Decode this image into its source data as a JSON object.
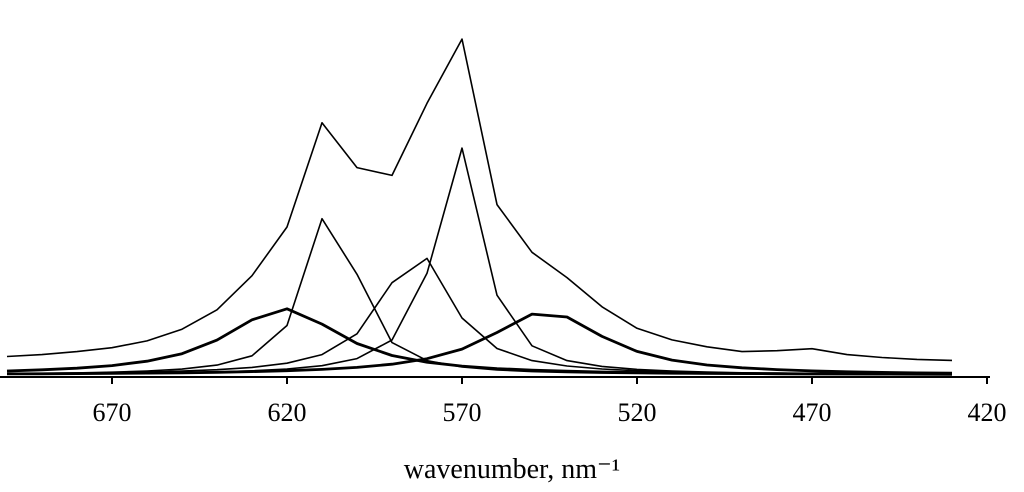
{
  "chart_data": {
    "type": "line",
    "x_label": "wavenumber, nm⁻¹",
    "x": [
      700,
      690,
      680,
      670,
      660,
      650,
      640,
      630,
      620,
      610,
      600,
      590,
      580,
      570,
      560,
      550,
      540,
      530,
      520,
      510,
      500,
      490,
      480,
      470,
      460,
      450,
      440,
      430
    ],
    "xlim": [
      702,
      420
    ],
    "xticks": [
      670,
      620,
      570,
      520,
      470,
      420
    ],
    "ylim": [
      0,
      380
    ],
    "series": [
      {
        "color": "#000000",
        "width": 1.6,
        "values": [
          19,
          21,
          24,
          28,
          35,
          47,
          67,
          102,
          152,
          259,
          213,
          205,
          279,
          345,
          175,
          126,
          100,
          70,
          48,
          36,
          29,
          24,
          25,
          27,
          21,
          18,
          16,
          15
        ]
      },
      {
        "color": "#000000",
        "width": 2.8,
        "values": [
          4.1,
          5.3,
          7.0,
          9.7,
          14.2,
          21.9,
          35.8,
          56.7,
          68,
          52.3,
          32.4,
          20,
          13.1,
          9.1,
          6.6,
          5.0,
          3.9,
          3.1,
          2.6,
          2.1,
          1.8,
          1.5,
          1.3,
          1.1,
          1.0,
          0.9,
          0.8,
          0.7
        ]
      },
      {
        "color": "#000000",
        "width": 1.6,
        "values": [
          1.3,
          1.7,
          2.2,
          2.9,
          4.1,
          6.1,
          10.2,
          19.7,
          50.8,
          160.5,
          103.4,
          33.3,
          14.8,
          8.2,
          5.2,
          3.5,
          2.6,
          1.9,
          1.5,
          1.2,
          1.0,
          0.9,
          0.7,
          0.6,
          0.5,
          0.4,
          0.4,
          0.3
        ]
      },
      {
        "color": "#000000",
        "width": 1.6,
        "values": [
          1.3,
          1.6,
          1.9,
          2.4,
          3.0,
          4.0,
          5.4,
          7.8,
          12.1,
          21.0,
          42.3,
          94.8,
          119.8,
          58.5,
          27.2,
          14.8,
          9.2,
          6.2,
          4.4,
          3.3,
          2.6,
          2.1,
          1.8,
          1.5,
          1.3,
          1.1,
          1.0,
          0.9
        ]
      },
      {
        "color": "#000000",
        "width": 1.6,
        "values": [
          0.9,
          1.1,
          1.3,
          1.5,
          1.9,
          2.4,
          3.2,
          4.3,
          6.2,
          9.6,
          16.8,
          35.9,
          104.4,
          233,
          82,
          30,
          14.8,
          8.8,
          5.7,
          4.0,
          3.0,
          2.3,
          1.8,
          1.5,
          1.3,
          1.1,
          1.0,
          0.9
        ]
      },
      {
        "color": "#000000",
        "width": 2.8,
        "values": [
          1.1,
          1.2,
          1.4,
          1.7,
          1.9,
          2.3,
          2.8,
          3.5,
          4.4,
          5.8,
          7.8,
          11.1,
          16.7,
          26.6,
          43.6,
          62.5,
          59.6,
          39.6,
          24.2,
          15.3,
          10.3,
          7.4,
          5.5,
          4.2,
          3.3,
          2.7,
          2.2,
          1.9
        ]
      }
    ]
  }
}
